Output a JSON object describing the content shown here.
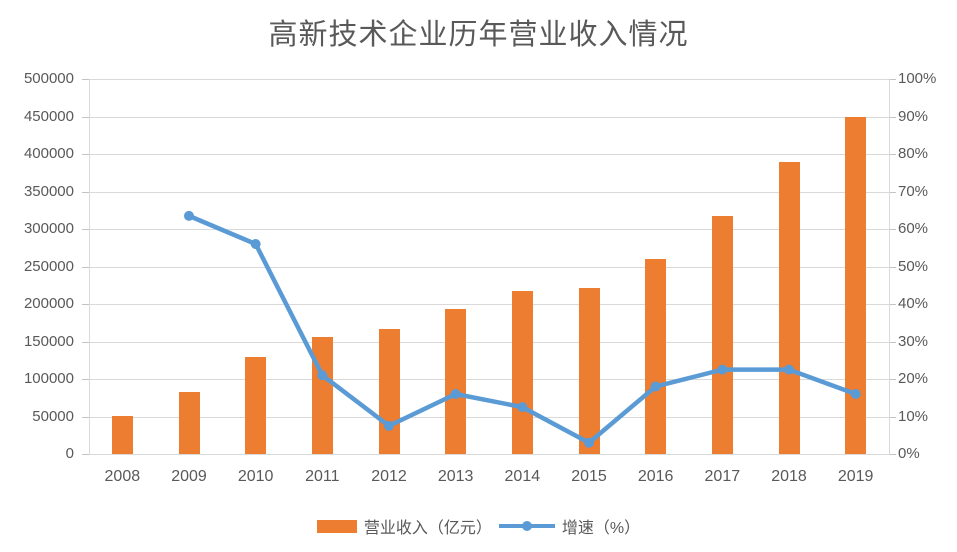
{
  "chart_data": {
    "type": "bar",
    "title": "高新技术企业历年营业收入情况",
    "categories": [
      "2008",
      "2009",
      "2010",
      "2011",
      "2012",
      "2013",
      "2014",
      "2015",
      "2016",
      "2017",
      "2018",
      "2019"
    ],
    "series": [
      {
        "name": "营业收入（亿元）",
        "type": "bar",
        "axis": "left",
        "color": "#ED7D31",
        "values": [
          51000,
          83000,
          130000,
          156000,
          167000,
          194000,
          217000,
          222000,
          260000,
          318000,
          389000,
          450000
        ]
      },
      {
        "name": "增速（%）",
        "type": "line",
        "axis": "right",
        "color": "#5B9BD5",
        "values": [
          null,
          63.5,
          56,
          21,
          7.5,
          16,
          12.5,
          3,
          18,
          22.5,
          22.5,
          16
        ]
      }
    ],
    "left_axis": {
      "min": 0,
      "max": 500000,
      "step": 50000,
      "tick_labels": [
        "0",
        "50000",
        "100000",
        "150000",
        "200000",
        "250000",
        "300000",
        "350000",
        "400000",
        "450000",
        "500000"
      ]
    },
    "right_axis": {
      "min": 0,
      "max": 100,
      "step": 10,
      "tick_labels": [
        "0%",
        "10%",
        "20%",
        "30%",
        "40%",
        "50%",
        "60%",
        "70%",
        "80%",
        "90%",
        "100%"
      ]
    },
    "grid": true,
    "legend_position": "bottom",
    "colors": {
      "gridline": "#D9D9D9",
      "axis_text": "#595959",
      "title_text": "#595959"
    }
  }
}
